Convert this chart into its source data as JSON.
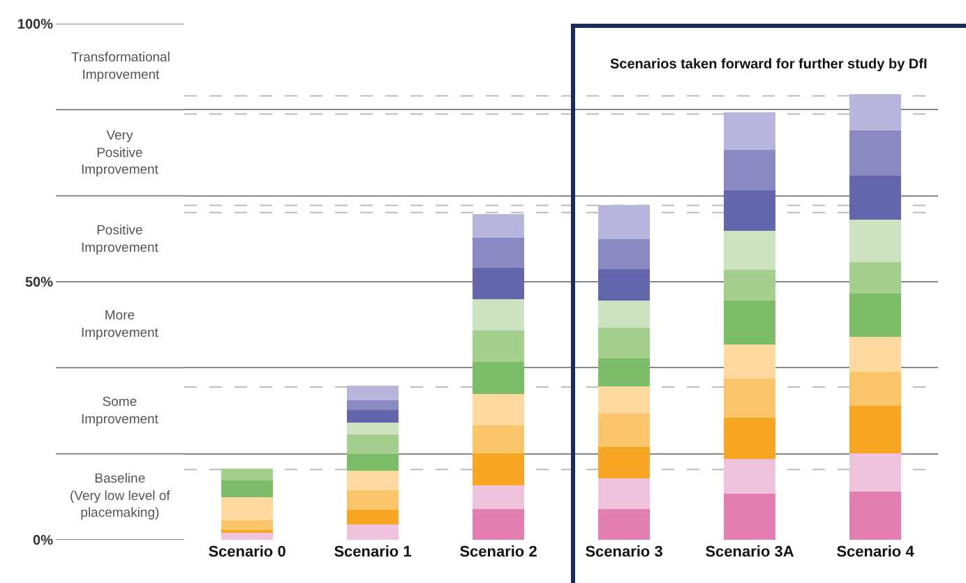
{
  "chart_data": {
    "type": "bar",
    "stacked": true,
    "categories": [
      "Scenario 0",
      "Scenario 1",
      "Scenario 2",
      "Scenario 3",
      "Scenario 3A",
      "Scenario 4"
    ],
    "series": [
      {
        "color": "#e27fb0",
        "values": [
          null,
          null,
          5.9,
          5.9,
          8.9,
          9.3
        ]
      },
      {
        "color": "#f0c3dc",
        "values": [
          1.4,
          3.0,
          4.6,
          6.0,
          6.8,
          7.5
        ]
      },
      {
        "color": "#f6a623",
        "values": [
          0.5,
          2.8,
          6.2,
          6.1,
          7.9,
          9.2
        ]
      },
      {
        "color": "#fbc56c",
        "values": [
          1.9,
          3.8,
          5.5,
          6.4,
          7.6,
          6.6
        ]
      },
      {
        "color": "#fdd9a0",
        "values": [
          4.5,
          3.8,
          6.1,
          5.3,
          6.6,
          6.7
        ]
      },
      {
        "color": "#7dbd6a",
        "values": [
          3.2,
          3.2,
          6.2,
          5.4,
          8.5,
          8.4
        ]
      },
      {
        "color": "#a4cf8e",
        "values": [
          2.3,
          3.8,
          6.0,
          6.0,
          6.0,
          6.1
        ]
      },
      {
        "color": "#cde3c1",
        "values": [
          null,
          2.3,
          6.1,
          5.2,
          7.6,
          8.2
        ]
      },
      {
        "color": "#6366ad",
        "values": [
          null,
          2.4,
          6.1,
          6.1,
          7.8,
          8.5
        ]
      },
      {
        "color": "#8a89c1",
        "values": [
          null,
          1.9,
          5.8,
          5.8,
          7.9,
          8.8
        ]
      },
      {
        "color": "#b8b6dc",
        "values": [
          null,
          2.9,
          4.6,
          6.6,
          7.2,
          7.0
        ]
      }
    ],
    "ylim": [
      0,
      100
    ],
    "yticks": [
      {
        "value": 0,
        "label": "0%"
      },
      {
        "value": 16.67,
        "label": null
      },
      {
        "value": 33.33,
        "label": null
      },
      {
        "value": 50,
        "label": "50%"
      },
      {
        "value": 66.67,
        "label": null
      },
      {
        "value": 83.33,
        "label": null
      },
      {
        "value": 100,
        "label": "100%"
      }
    ],
    "grid": "y",
    "ref_lines": [
      {
        "axis": "y",
        "value": 13.6,
        "line_style": "dashed",
        "color": "#bbbbbb"
      },
      {
        "axis": "y",
        "value": 29.6,
        "line_style": "dashed",
        "color": "#bbbbbb"
      },
      {
        "axis": "y",
        "value": 63.4,
        "line_style": "dashed",
        "color": "#bbbbbb"
      },
      {
        "axis": "y",
        "value": 64.8,
        "line_style": "dashed",
        "color": "#bbbbbb"
      },
      {
        "axis": "y",
        "value": 82.5,
        "line_style": "dashed",
        "color": "#bbbbbb"
      },
      {
        "axis": "y",
        "value": 86.0,
        "line_style": "dashed",
        "color": "#bbbbbb"
      }
    ],
    "annotations": [
      "Baseline\n(Very low level of\nplacemaking)",
      "Some\nImprovement",
      "More\nImprovement",
      "Positive\nImprovement",
      "Very\nPositive\nImprovement",
      "Transformational\nImprovement",
      "Scenarios taken forward for further study by DfI"
    ]
  }
}
